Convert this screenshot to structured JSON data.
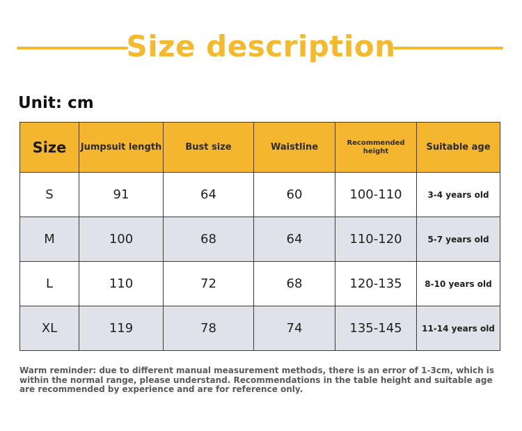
{
  "title": "Size description",
  "unit_label": "Unit: cm",
  "colors": {
    "accent": "#f4b92d",
    "header_bg": "#f4b62f",
    "shaded_row": "#dfe3e9"
  },
  "table": {
    "headers": [
      "Size",
      "Jumpsuit length",
      "Bust size",
      "Waistline",
      "Recommended height",
      "Suitable age"
    ],
    "rows": [
      [
        "S",
        "91",
        "64",
        "60",
        "100-110",
        "3-4 years old"
      ],
      [
        "M",
        "100",
        "68",
        "64",
        "110-120",
        "5-7 years old"
      ],
      [
        "L",
        "110",
        "72",
        "68",
        "120-135",
        "8-10 years old"
      ],
      [
        "XL",
        "119",
        "78",
        "74",
        "135-145",
        "11-14 years old"
      ]
    ]
  },
  "note": "Warm reminder: due to different manual measurement methods, there is an error of 1-3cm, which is within the normal range, please understand. Recommendations in the table height and suitable age are recommended by experience and are for reference only."
}
